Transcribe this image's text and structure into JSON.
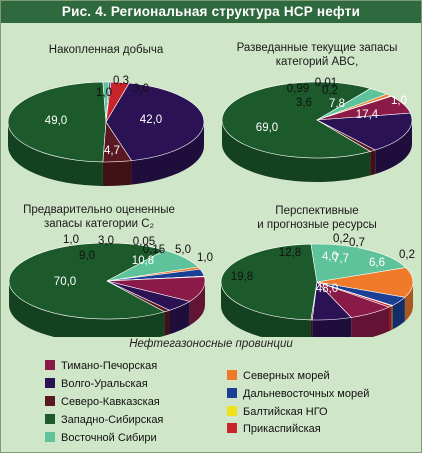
{
  "title": "Рис. 4. Региональная структура НСР нефти",
  "legend": {
    "title": "Нефтегазоносные провинции",
    "items": [
      {
        "label": "Тимано-Печорская",
        "color": "#8a1a48"
      },
      {
        "label": "Волго-Уральская",
        "color": "#2b1254"
      },
      {
        "label": "Северо-Кавказская",
        "color": "#5a1822"
      },
      {
        "label": "Западно-Сибирская",
        "color": "#1c5a2c"
      },
      {
        "label": "Восточной Сибири",
        "color": "#5ec39a"
      },
      {
        "label": "Северных морей",
        "color": "#ee7a2a"
      },
      {
        "label": "Дальневосточных морей",
        "color": "#1b3f94"
      },
      {
        "label": "Балтийская НГО",
        "color": "#f0e21a"
      },
      {
        "label": "Прикаспийская",
        "color": "#c8242c"
      }
    ]
  },
  "chart_data": [
    {
      "type": "pie",
      "title": "Накопленная добыча",
      "slices": [
        {
          "category": "Западно-Сибирская",
          "value": 49.0,
          "label": "49,0"
        },
        {
          "category": "Восточной Сибири",
          "value": 1.0,
          "label": "1,0"
        },
        {
          "category": "Дальневосточных морей",
          "value": 0.3,
          "label": "0,3"
        },
        {
          "category": "Балтийская НГО",
          "value": 0.0,
          "label": ""
        },
        {
          "category": "Прикаспийская",
          "value": 3.0,
          "label": "3,0"
        },
        {
          "category": "Волго-Уральская",
          "value": 42.0,
          "label": "42,0"
        },
        {
          "category": "Северо-Кавказская",
          "value": 4.7,
          "label": "4,7"
        }
      ]
    },
    {
      "type": "pie",
      "title": "Разведанные текущие запасы категорий ABC",
      "slices": [
        {
          "category": "Западно-Сибирская",
          "value": 69.0,
          "label": "69,0"
        },
        {
          "category": "Восточной Сибири",
          "value": 3.6,
          "label": "3,6"
        },
        {
          "category": "Северных морей",
          "value": 0.99,
          "label": "0,99"
        },
        {
          "category": "Дальневосточных морей",
          "value": 0.01,
          "label": "0,01"
        },
        {
          "category": "Прикаспийская",
          "value": 0.2,
          "label": "0,2"
        },
        {
          "category": "Тимано-Печорская",
          "value": 7.8,
          "label": "7,8"
        },
        {
          "category": "Волго-Уральская",
          "value": 17.4,
          "label": "17,4"
        },
        {
          "category": "Северо-Кавказская",
          "value": 1.0,
          "label": "1,0"
        }
      ]
    },
    {
      "type": "pie",
      "title": "Предварительно оцененные запасы категории С",
      "slices": [
        {
          "category": "Западно-Сибирская",
          "value": 70.0,
          "label": "70,0"
        },
        {
          "category": "Восточной Сибири",
          "value": 9.0,
          "label": "9,0"
        },
        {
          "category": "Северных морей",
          "value": 1.0,
          "label": "1,0"
        },
        {
          "category": "Дальневосточных морей",
          "value": 3.0,
          "label": "3,0"
        },
        {
          "category": "Балтийская НГО",
          "value": 0.05,
          "label": "0,05"
        },
        {
          "category": "Прикаспийская",
          "value": 0.15,
          "label": "0,15"
        },
        {
          "category": "Тимано-Печорская",
          "value": 10.8,
          "label": "10,8"
        },
        {
          "category": "Волго-Уральская",
          "value": 5.0,
          "label": "5,0"
        },
        {
          "category": "Северо-Кавказская",
          "value": 1.0,
          "label": "1,0"
        }
      ]
    },
    {
      "type": "pie",
      "title": "Перспективные и прогнозные ресурсы",
      "slices": [
        {
          "category": "Западно-Сибирская",
          "value": 48.0,
          "label": "48,0"
        },
        {
          "category": "Восточной Сибири",
          "value": 19.8,
          "label": "19,8"
        },
        {
          "category": "Северных морей",
          "value": 12.8,
          "label": "12,8"
        },
        {
          "category": "Дальневосточных морей",
          "value": 4.0,
          "label": "4,0"
        },
        {
          "category": "Балтийская НГО",
          "value": 0.2,
          "label": "0,2"
        },
        {
          "category": "Прикаспийская",
          "value": 0.7,
          "label": "0,7"
        },
        {
          "category": "Тимано-Печорская",
          "value": 7.7,
          "label": "7,7"
        },
        {
          "category": "Волго-Уральская",
          "value": 6.6,
          "label": "6,6"
        },
        {
          "category": "Северо-Кавказская",
          "value": 0.2,
          "label": "0,2"
        }
      ]
    }
  ]
}
